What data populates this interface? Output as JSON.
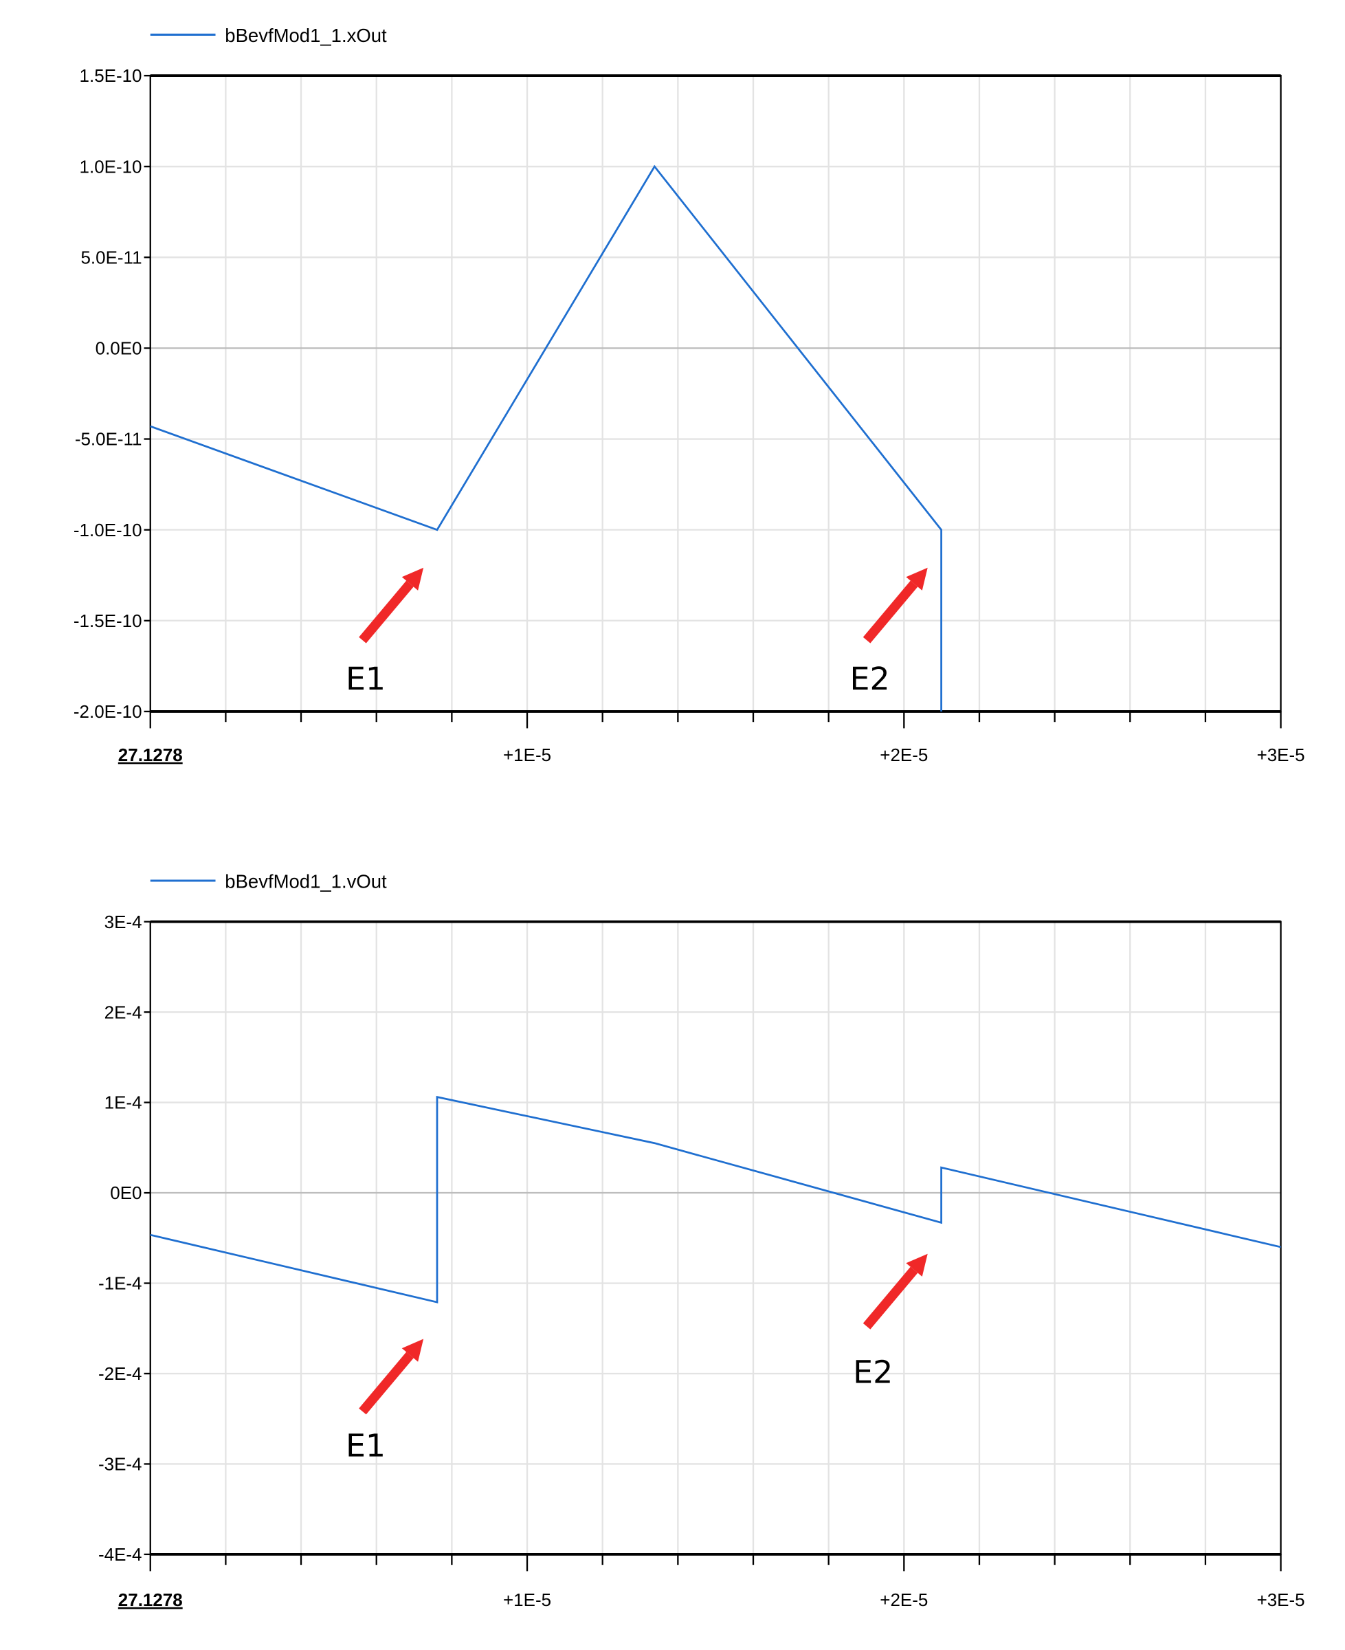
{
  "chart_data": [
    {
      "type": "line",
      "legend": [
        "bBevfMod1_1.xOut"
      ],
      "legend_placement": "top-left",
      "x_origin_label": "27.1278",
      "x_tick_labels": [
        "27.1278",
        "+1E-5",
        "+2E-5",
        "+3E-5"
      ],
      "x_ticks": [
        0,
        1e-05,
        2e-05,
        3e-05
      ],
      "xlim": [
        0,
        3e-05
      ],
      "y_tick_labels": [
        "1.5E-10",
        "1.0E-10",
        "5.0E-11",
        "0.0E0",
        "-5.0E-11",
        "-1.0E-10",
        "-1.5E-10",
        "-2.0E-10"
      ],
      "y_ticks": [
        1.5e-10,
        1e-10,
        5e-11,
        0,
        -5e-11,
        -1e-10,
        -1.5e-10,
        -2e-10
      ],
      "ylim": [
        -2e-10,
        1.5e-10
      ],
      "grid": true,
      "color": "#1f6fd0",
      "series": [
        {
          "name": "bBevfMod1_1.xOut",
          "x": [
            0,
            7.61e-06,
            1.338e-05,
            2.099e-05,
            2.099e-05
          ],
          "y": [
            -4.3e-11,
            -1e-10,
            1e-10,
            -1e-10,
            -2e-10
          ]
        }
      ],
      "annotations": [
        {
          "text": "E1",
          "x": 7.61e-06,
          "y": -1e-10
        },
        {
          "text": "E2",
          "x": 2.099e-05,
          "y": -1e-10
        }
      ]
    },
    {
      "type": "line",
      "legend": [
        "bBevfMod1_1.vOut"
      ],
      "legend_placement": "top-left",
      "x_origin_label": "27.1278",
      "x_tick_labels": [
        "27.1278",
        "+1E-5",
        "+2E-5",
        "+3E-5"
      ],
      "x_ticks": [
        0,
        1e-05,
        2e-05,
        3e-05
      ],
      "xlim": [
        0,
        3e-05
      ],
      "y_tick_labels": [
        "3E-4",
        "2E-4",
        "1E-4",
        "0E0",
        "-1E-4",
        "-2E-4",
        "-3E-4",
        "-4E-4"
      ],
      "y_ticks": [
        0.0003,
        0.0002,
        0.0001,
        0,
        -0.0001,
        -0.0002,
        -0.0003,
        -0.0004
      ],
      "ylim": [
        -0.0004,
        0.0003
      ],
      "grid": true,
      "color": "#1f6fd0",
      "series": [
        {
          "name": "bBevfMod1_1.vOut",
          "x": [
            0,
            7.61e-06,
            7.61e-06,
            1.338e-05,
            2.099e-05,
            2.099e-05,
            3e-05
          ],
          "y": [
            -4.65e-05,
            -0.000121,
            0.000106,
            5.5e-05,
            -3.3e-05,
            2.8e-05,
            -6e-05
          ]
        }
      ],
      "annotations": [
        {
          "text": "E1",
          "x": 7.61e-06,
          "y": -0.00016
        },
        {
          "text": "E2",
          "x": 2.099e-05,
          "y": -7e-05
        }
      ]
    }
  ],
  "arrow_color": "#f02828"
}
